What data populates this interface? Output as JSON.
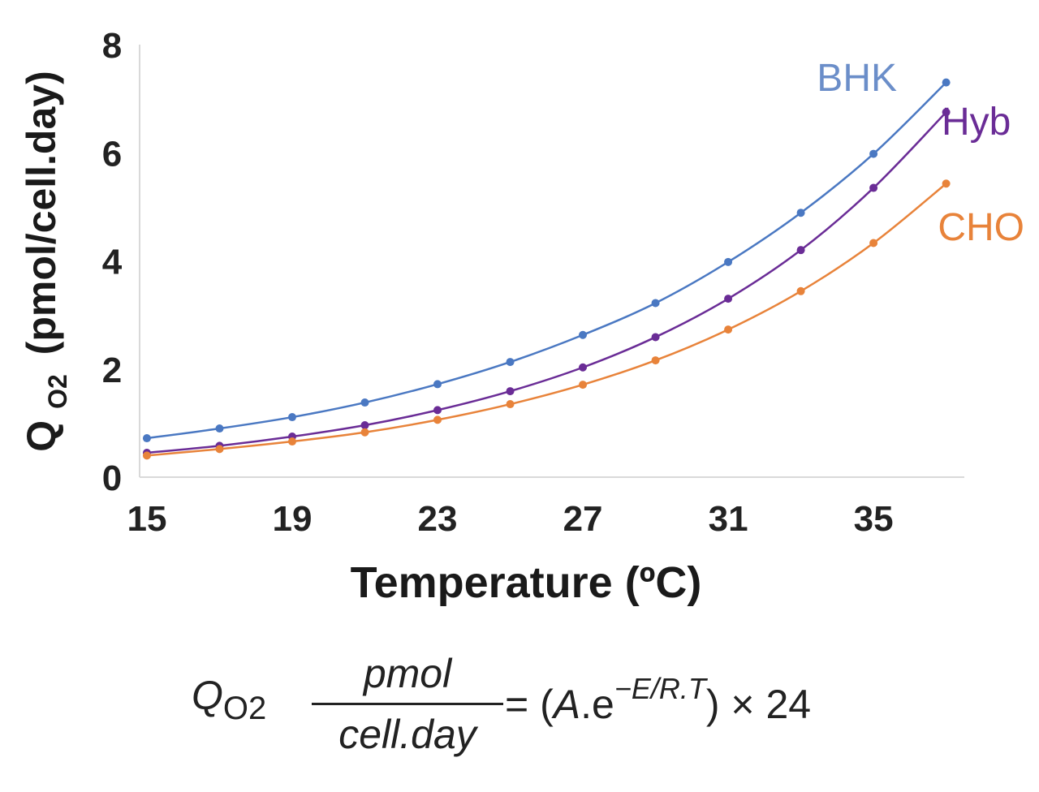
{
  "chart_data": {
    "type": "line",
    "title": "",
    "xlabel": "Temperature (ºC)",
    "ylabel": "Q",
    "ylabel_subscript": "O2",
    "ylabel_units": "(pmol/cell.day)",
    "x": [
      15,
      17,
      19,
      21,
      23,
      25,
      27,
      29,
      31,
      33,
      35,
      37
    ],
    "x_ticks": [
      15,
      19,
      23,
      27,
      31,
      35
    ],
    "y_ticks": [
      0,
      2,
      4,
      6,
      8
    ],
    "xlim": [
      14.8,
      37.5
    ],
    "ylim": [
      0,
      8
    ],
    "grid": false,
    "series": [
      {
        "name": "BHK",
        "color": "#4a78c2",
        "label_color": "#6b8ec9",
        "values": [
          0.72,
          0.9,
          1.11,
          1.38,
          1.72,
          2.13,
          2.63,
          3.22,
          3.98,
          4.89,
          5.98,
          7.3
        ]
      },
      {
        "name": "Hyb",
        "color": "#6a2c96",
        "label_color": "#6a2c96",
        "values": [
          0.45,
          0.58,
          0.75,
          0.96,
          1.24,
          1.59,
          2.03,
          2.59,
          3.3,
          4.2,
          5.35,
          6.75
        ]
      },
      {
        "name": "CHO",
        "color": "#e8833a",
        "label_color": "#e8833a",
        "values": [
          0.4,
          0.52,
          0.66,
          0.83,
          1.06,
          1.35,
          1.71,
          2.16,
          2.73,
          3.44,
          4.33,
          5.43
        ]
      }
    ]
  },
  "formula": {
    "q": "Q",
    "q_sub": "O2",
    "numerator": "pmol",
    "denominator": "cell.day",
    "rhs_prefix": "= (",
    "rhs_a": "A",
    "rhs_dot_e": ".e",
    "rhs_exponent": "−E/R.T",
    "rhs_suffix": ") × 24"
  }
}
